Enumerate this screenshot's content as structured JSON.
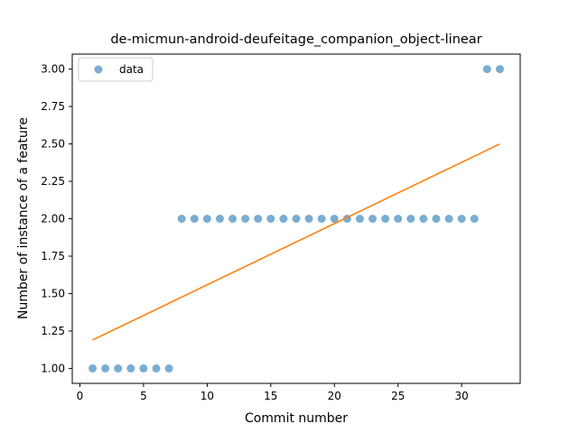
{
  "chart_data": {
    "type": "scatter",
    "title": "de-micmun-android-deufeitage_companion_object-linear",
    "xlabel": "Commit number",
    "ylabel": "Number of instance of a feature",
    "xlim": [
      -0.6,
      34.6
    ],
    "ylim": [
      0.9,
      3.1
    ],
    "x_ticks": [
      0,
      5,
      10,
      15,
      20,
      25,
      30
    ],
    "y_ticks": [
      1.0,
      1.25,
      1.5,
      1.75,
      2.0,
      2.25,
      2.5,
      2.75,
      3.0
    ],
    "x_tick_labels": [
      "0",
      "5",
      "10",
      "15",
      "20",
      "25",
      "30"
    ],
    "y_tick_labels": [
      "1.00",
      "1.25",
      "1.50",
      "1.75",
      "2.00",
      "2.25",
      "2.50",
      "2.75",
      "3.00"
    ],
    "grid": false,
    "legend_position": "top-left",
    "series": [
      {
        "name": "data",
        "kind": "scatter",
        "color": "#1f77b4",
        "x": [
          1,
          2,
          3,
          4,
          5,
          6,
          7,
          8,
          9,
          10,
          11,
          12,
          13,
          14,
          15,
          16,
          17,
          18,
          19,
          20,
          21,
          22,
          23,
          24,
          25,
          26,
          27,
          28,
          29,
          30,
          31,
          32,
          33
        ],
        "y": [
          1,
          1,
          1,
          1,
          1,
          1,
          1,
          2,
          2,
          2,
          2,
          2,
          2,
          2,
          2,
          2,
          2,
          2,
          2,
          2,
          2,
          2,
          2,
          2,
          2,
          2,
          2,
          2,
          2,
          2,
          2,
          3,
          3
        ]
      },
      {
        "kind": "line",
        "color": "#ff7f0e",
        "x": [
          1,
          33
        ],
        "y": [
          1.19,
          2.5
        ]
      }
    ]
  }
}
